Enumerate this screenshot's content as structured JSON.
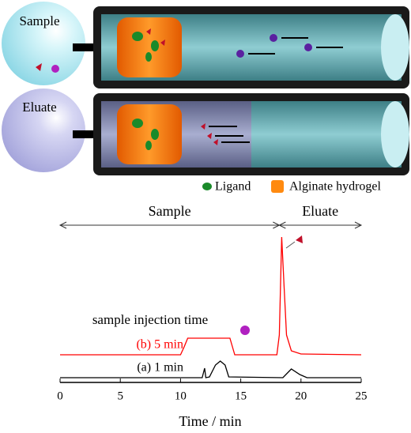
{
  "diagram": {
    "labels": [
      "Sample",
      "Eluate"
    ],
    "legend": [
      "Ligand",
      "Alginate hydrogel"
    ]
  },
  "chart_data": {
    "type": "line",
    "xlabel": "Time / min",
    "xlim": [
      0,
      25
    ],
    "xticks": [
      0,
      5,
      10,
      15,
      20,
      25
    ],
    "ylim": [
      0,
      200
    ],
    "regions": [
      {
        "label": "Sample",
        "from": 0,
        "to": 18.2
      },
      {
        "label": "Eluate",
        "from": 18.2,
        "to": 25
      }
    ],
    "annotation": "sample injection time",
    "series": [
      {
        "name": "(b) 5 min",
        "color": "#ff0000",
        "x": [
          0,
          10,
          10.3,
          10.6,
          14.1,
          14.5,
          18.0,
          18.2,
          18.4,
          18.6,
          18.8,
          19.2,
          20,
          25
        ],
        "values": [
          35,
          35,
          45,
          56,
          56,
          35,
          35,
          60,
          184,
          120,
          60,
          40,
          36,
          35
        ]
      },
      {
        "name": "(a) 1 min",
        "color": "#000000",
        "x": [
          0,
          11.8,
          12.0,
          12.1,
          12.4,
          12.9,
          13.3,
          13.7,
          14.0,
          18.5,
          19.2,
          19.9,
          20.5,
          25
        ],
        "values": [
          6,
          6,
          18,
          6,
          7,
          22,
          27,
          22,
          7,
          6,
          17,
          10,
          6,
          6
        ]
      }
    ]
  }
}
